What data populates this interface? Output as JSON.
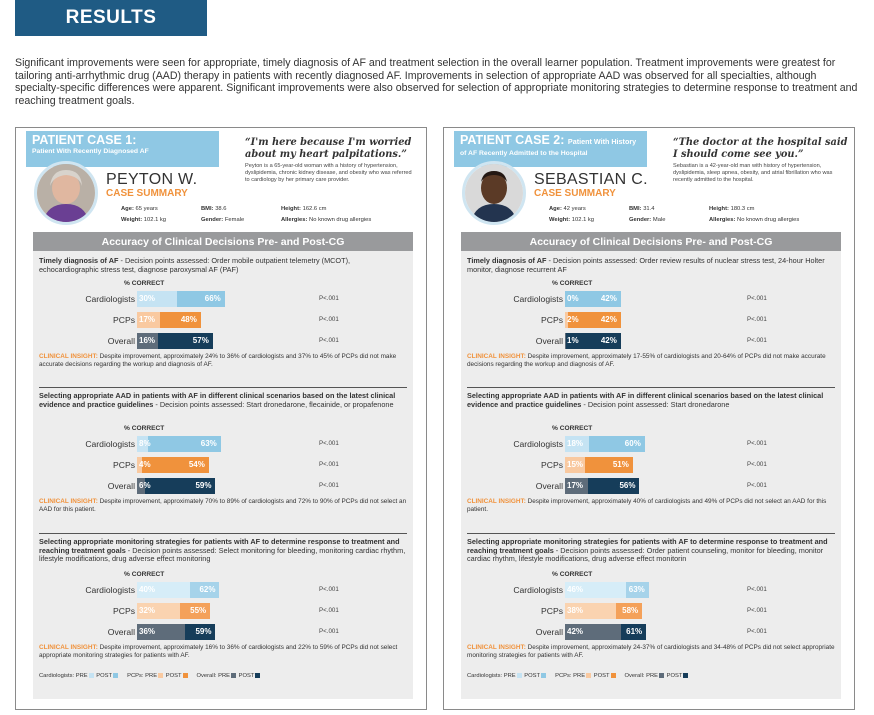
{
  "results": {
    "title": "RESULTS",
    "intro": "Significant improvements were seen for appropriate, timely diagnosis of AF and treatment selection in the overall learner population. Treatment improvements were greatest for tailoring anti-arrhythmic drug (AAD) therapy in patients with recently diagnosed AF. Improvements in selection of appropriate AAD was observed for all specialties, although specialty-specific differences were apparent. Significant improvements were also observed for selection of appropriate monitoring strategies to determine response to treatment and reaching treatment goals."
  },
  "colors": {
    "cardio_pre": "#c5e3f3",
    "cardio_post": "#8fc8e4",
    "pcp_pre": "#f9c9a0",
    "pcp_post": "#f0923c",
    "overall_pre": "#5e6c7a",
    "overall_post": "#163d5a",
    "monitor_cardio_pre": "#d6edf8",
    "monitor_cardio_post": "#a6d3ea",
    "monitor_pcp_pre": "#fad3b0",
    "monitor_pcp_post": "#f4a15a"
  },
  "common": {
    "acc_header": "Accuracy of Clinical Decisions Pre- and Post-CG",
    "pct_correct": "% CORRECT",
    "pval": "P<.001",
    "case_summary": "CASE SUMMARY",
    "insight_label": "CLINICAL INSIGHT:",
    "legend": {
      "cardio": "Cardiologists:",
      "pcp": "PCPs:",
      "overall": "Overall:",
      "pre": "PRE",
      "post": "POST"
    },
    "row_labels": [
      "Cardiologists",
      "PCPs",
      "Overall"
    ],
    "stat_labels": {
      "age": "Age:",
      "bmi": "BMI:",
      "height": "Height:",
      "weight": "Weight:",
      "gender": "Gender:",
      "allergies": "Allergies:"
    }
  },
  "case1": {
    "tag": "PATIENT CASE 1:",
    "subtitle": "Patient With Recently Diagnosed AF",
    "name": "PEYTON W.",
    "quote": "“I'm here because I'm worried about my heart palpitations.”",
    "bio": "Peyton is a 65-year-old woman with a history of hypertension, dyslipidemia, chronic kidney disease, and obesity who was referred to cardiology by her primary care provider.",
    "age": "65 years",
    "bmi": "38.6",
    "height": "162.6 cm",
    "weight": "102.1 kg",
    "gender": "Female",
    "allergies": "No known drug allergies",
    "sections": [
      {
        "title_bold": "Timely diagnosis of AF",
        "title_rest": " - Decision points assessed: Order mobile outpatient telemetry (MCOT), echocardiographic stress test, diagnose paroxysmal AF (PAF)",
        "pre": [
          30,
          17,
          16
        ],
        "post": [
          66,
          48,
          57
        ],
        "pre_lbl": [
          "30%",
          "17%",
          "16%"
        ],
        "post_lbl": [
          "66%",
          "48%",
          "57%"
        ],
        "insight": "Despite improvement, approximately 24% to 36% of cardiologists and 37% to 45% of PCPs did not make accurate decisions regarding the workup and diagnosis of AF."
      },
      {
        "title_bold": "Selecting appropriate AAD in patients with AF in different clinical scenarios based on the latest clinical evidence and practice guidelines",
        "title_rest": " - Decision points assessed: Start dronedarone, flecainide, or propafenone",
        "pre": [
          8,
          4,
          6
        ],
        "post": [
          63,
          54,
          59
        ],
        "pre_lbl": [
          "8%",
          "4%",
          "6%"
        ],
        "post_lbl": [
          "63%",
          "54%",
          "59%"
        ],
        "insight": "Despite improvement, approximately 70% to 89% of cardiologists and 72% to 90% of PCPs did not select an AAD for this patient."
      },
      {
        "title_bold": "Selecting appropriate monitoring strategies for patients with AF to determine response to treatment and reaching treatment goals",
        "title_rest": " - Decision points assessed: Select monitoring for bleeding, monitoring cardiac rhythm, lifestyle modifications, drug adverse effect monitoring",
        "pre": [
          40,
          32,
          36
        ],
        "post": [
          62,
          55,
          59
        ],
        "pre_lbl": [
          "40%",
          "32%",
          "36%"
        ],
        "post_lbl": [
          "62%",
          "55%",
          "59%"
        ],
        "insight": "Despite improvement, approximately 16% to 36% of cardiologists and 22% to 59% of PCPs did not select appropriate monitoring strategies for patients with AF."
      }
    ]
  },
  "case2": {
    "tag": "PATIENT CASE 2:",
    "tag_inline": "Patient With History",
    "subtitle": "of AF Recently Admitted to the Hospital",
    "name": "SEBASTIAN C.",
    "quote": "“The doctor at the hospital said I should come see you.”",
    "bio": "Sebastian is a 42-year-old man with history of hypertension, dyslipidemia, sleep apnea, obesity, and atrial fibrillation who was recently admitted to the hospital.",
    "age": "42 years",
    "bmi": "31.4",
    "height": "180.3 cm",
    "weight": "102.1 kg",
    "gender": "Male",
    "allergies": "No known drug allergies",
    "sections": [
      {
        "title_bold": "Timely diagnosis of AF",
        "title_rest": " - Decision points assessed: Order review results of nuclear stress test, 24-hour Holter monitor, diagnose recurrent AF",
        "pre": [
          0,
          2,
          1
        ],
        "post": [
          42,
          42,
          42
        ],
        "pre_lbl": [
          "0%",
          "2%",
          "1%"
        ],
        "post_lbl": [
          "42%",
          "42%",
          "42%"
        ],
        "insight": "Despite improvement, approximately 17-55% of cardiologists and 20-64% of PCPs did not make accurate decisions regarding the workup and diagnosis of AF."
      },
      {
        "title_bold": "Selecting appropriate AAD in patients with AF in different clinical scenarios based on the latest clinical evidence and practice guidelines",
        "title_rest": " - Decision point assessed: Start dronedarone",
        "pre": [
          18,
          15,
          17
        ],
        "post": [
          60,
          51,
          56
        ],
        "pre_lbl": [
          "18%",
          "15%",
          "17%"
        ],
        "post_lbl": [
          "60%",
          "51%",
          "56%"
        ],
        "insight": "Despite improvement, approximately 40% of cardiologists and 49% of PCPs did not select an AAD for this patient."
      },
      {
        "title_bold": "Selecting appropriate monitoring strategies for patients with AF to determine response to treatment and reaching treatment goals",
        "title_rest": " - Decision points assessed: Order patient counseling, monitor for bleeding, monitor cardiac rhythm, lifestyle modifications, drug adverse effect monitorin",
        "pre": [
          46,
          38,
          42
        ],
        "post": [
          63,
          58,
          61
        ],
        "pre_lbl": [
          "46%",
          "38%",
          "42%"
        ],
        "post_lbl": [
          "63%",
          "58%",
          "61%"
        ],
        "insight": "Despite improvement, approximately 24-37% of cardiologists and 34-48% of PCPs did not select appropriate monitoring strategies for patients with AF."
      }
    ]
  }
}
